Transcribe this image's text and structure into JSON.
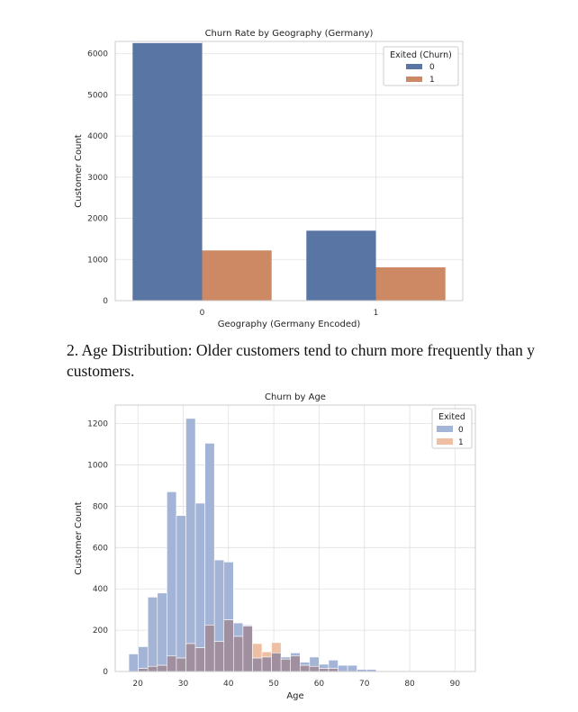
{
  "paragraph": {
    "line1": "2. Age Distribution: Older customers tend to churn more frequently than y",
    "line2": "customers."
  },
  "colors": {
    "blue": "#5875a4",
    "orange": "#cc8963",
    "hist_blue": "#a3b4d6",
    "hist_orange": "#eebfa2",
    "hist_overlap": "#a08f9e",
    "grid": "#e0e0e0",
    "axis": "#cccccc"
  },
  "chart_data": [
    {
      "type": "bar",
      "title": "Churn Rate by Geography (Germany)",
      "xlabel": "Geography (Germany Encoded)",
      "ylabel": "Customer Count",
      "categories": [
        "0",
        "1"
      ],
      "series": [
        {
          "name": "0",
          "values": [
            6260,
            1700
          ]
        },
        {
          "name": "1",
          "values": [
            1220,
            810
          ]
        }
      ],
      "ylim": [
        0,
        6300
      ],
      "yticks": [
        0,
        1000,
        2000,
        3000,
        4000,
        5000,
        6000
      ],
      "legend_title": "Exited (Churn)",
      "legend_position": "top-right",
      "grid": true
    },
    {
      "type": "bar",
      "subtype": "histogram",
      "title": "Churn by Age",
      "xlabel": "Age",
      "ylabel": "Customer Count",
      "bin_start": 18,
      "bin_width": 2.1,
      "series": [
        {
          "name": "0",
          "values": [
            85,
            120,
            360,
            380,
            870,
            755,
            1225,
            815,
            1105,
            540,
            530,
            235,
            225,
            65,
            70,
            90,
            70,
            90,
            45,
            70,
            35,
            55,
            30,
            30,
            10,
            10,
            2,
            2,
            2,
            2,
            2,
            2,
            2,
            2
          ]
        },
        {
          "name": "1",
          "values": [
            0,
            15,
            25,
            30,
            75,
            65,
            135,
            115,
            225,
            145,
            250,
            170,
            220,
            135,
            95,
            140,
            60,
            75,
            30,
            25,
            15,
            15,
            0,
            0,
            0,
            0,
            0,
            0,
            0,
            0,
            0,
            0,
            0,
            0
          ]
        }
      ],
      "xlim": [
        15,
        94.5
      ],
      "xticks": [
        20,
        30,
        40,
        50,
        60,
        70,
        80,
        90
      ],
      "ylim": [
        0,
        1290
      ],
      "yticks": [
        0,
        200,
        400,
        600,
        800,
        1000,
        1200
      ],
      "legend_title": "Exited",
      "legend_position": "top-right",
      "grid": true
    }
  ]
}
